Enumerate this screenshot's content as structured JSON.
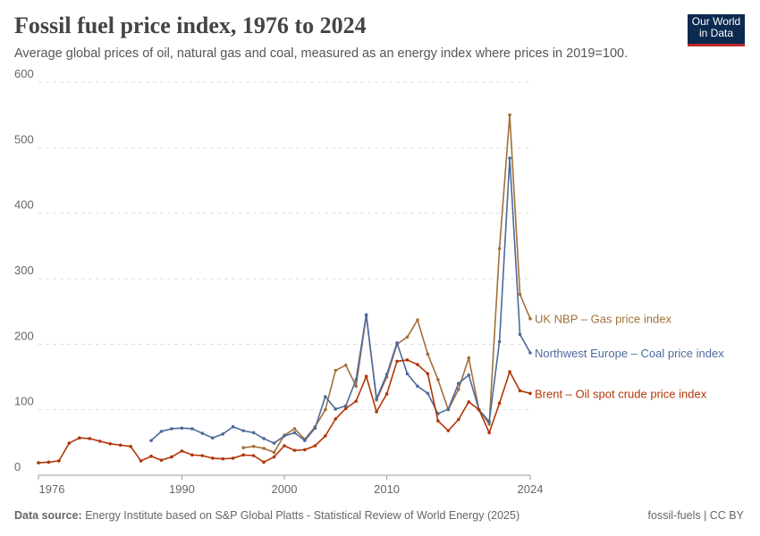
{
  "chart_data": {
    "type": "line",
    "title": "Fossil fuel price index, 1976 to 2024",
    "subtitle": "Average global prices of oil, natural gas and coal, measured as an energy index where prices in 2019=100.",
    "logo": "Our World in Data",
    "source_label": "Data source:",
    "source_text": "Energy Institute based on S&P Global Platts - Statistical Review of World Energy (2025)",
    "license": "fossil-fuels | CC BY",
    "x": [
      1976,
      1977,
      1978,
      1979,
      1980,
      1981,
      1982,
      1983,
      1984,
      1985,
      1986,
      1987,
      1988,
      1989,
      1990,
      1991,
      1992,
      1993,
      1994,
      1995,
      1996,
      1997,
      1998,
      1999,
      2000,
      2001,
      2002,
      2003,
      2004,
      2005,
      2006,
      2007,
      2008,
      2009,
      2010,
      2011,
      2012,
      2013,
      2014,
      2015,
      2016,
      2017,
      2018,
      2019,
      2020,
      2021,
      2022,
      2023,
      2024
    ],
    "xlim": [
      1976,
      2024
    ],
    "xticks": [
      1976,
      1990,
      2000,
      2010,
      2024
    ],
    "ylim": [
      0,
      600
    ],
    "yticks": [
      0,
      100,
      200,
      300,
      400,
      500,
      600
    ],
    "grid": true,
    "series": [
      {
        "name": "UK NBP – Gas price index",
        "color": "#a2703a",
        "values": [
          null,
          null,
          null,
          null,
          null,
          null,
          null,
          null,
          null,
          null,
          null,
          null,
          null,
          null,
          null,
          null,
          null,
          null,
          null,
          null,
          42,
          44,
          41,
          35,
          61,
          71,
          55,
          74,
          100,
          160,
          168,
          136,
          244,
          115,
          150,
          200,
          211,
          237,
          185,
          146,
          100,
          131,
          179,
          100,
          78,
          346,
          550,
          276,
          239
        ]
      },
      {
        "name": "Northwest Europe – Coal price index",
        "color": "#4c6a9c",
        "values": [
          null,
          null,
          null,
          null,
          null,
          null,
          null,
          null,
          null,
          null,
          null,
          53,
          67,
          71,
          72,
          71,
          64,
          57,
          63,
          74,
          68,
          65,
          56,
          49,
          60,
          65,
          53,
          72,
          120,
          101,
          106,
          146,
          245,
          117,
          154,
          202,
          155,
          136,
          125,
          94,
          101,
          140,
          153,
          100,
          82,
          204,
          484,
          215,
          187
        ]
      },
      {
        "name": "Brent – Oil spot crude price index",
        "color": "#b13507",
        "values": [
          19,
          20,
          22,
          49,
          57,
          56,
          52,
          48,
          46,
          44,
          22,
          29,
          23,
          28,
          37,
          31,
          30,
          26,
          25,
          26,
          31,
          30,
          20,
          28,
          45,
          38,
          39,
          45,
          60,
          86,
          102,
          113,
          151,
          97,
          124,
          174,
          176,
          169,
          155,
          83,
          68,
          85,
          112,
          100,
          65,
          110,
          158,
          129,
          125
        ]
      }
    ]
  }
}
